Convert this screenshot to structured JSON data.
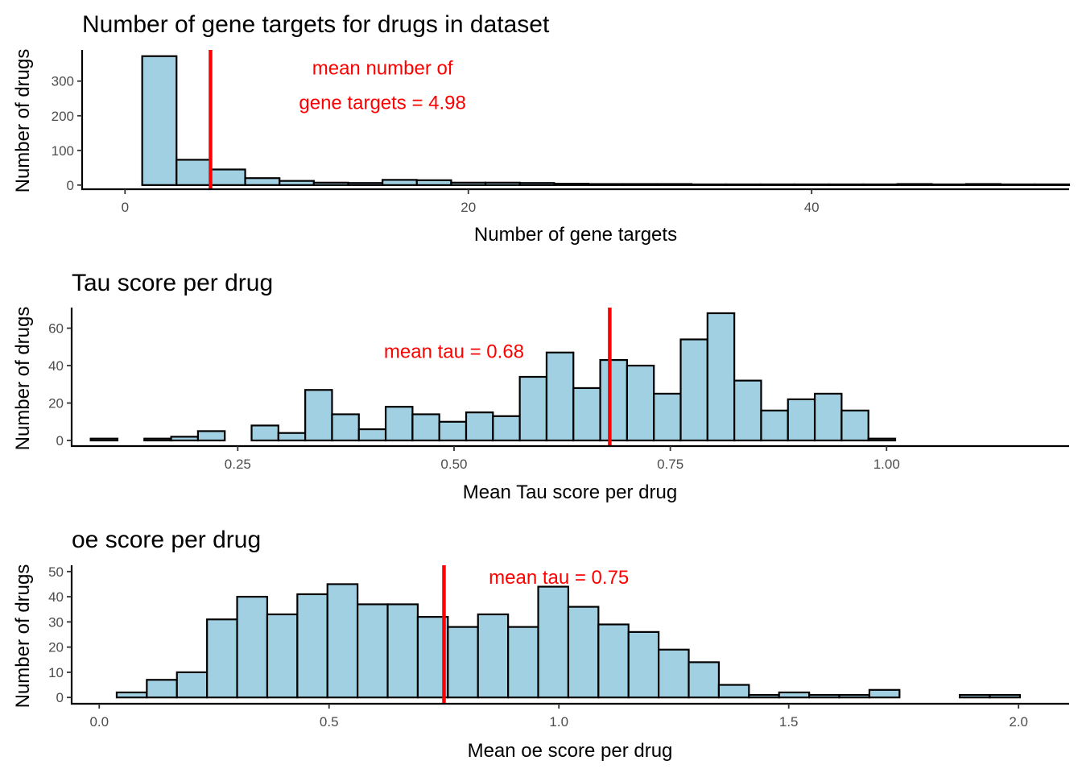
{
  "style": {
    "bar_fill": "#a1d0e2",
    "bar_stroke": "#000000",
    "mean_line_color": "#ff0000",
    "annotation_color": "#ff0000"
  },
  "chart_data": [
    {
      "type": "bar",
      "title": "Number of gene targets for drugs in dataset",
      "xlabel": "Number of gene targets",
      "ylabel": "Number of drugs",
      "xlim": [
        -2.5,
        55.0
      ],
      "ylim": [
        -12,
        390
      ],
      "xticks": [
        0,
        20,
        40
      ],
      "yticks": [
        0,
        100,
        200,
        300
      ],
      "bins": {
        "start": 1,
        "width": 2,
        "counts": [
          372,
          73,
          45,
          20,
          12,
          7,
          6,
          15,
          14,
          7,
          7,
          6,
          4,
          3,
          3,
          3,
          2,
          2,
          2,
          2,
          2,
          2,
          3,
          2,
          3,
          2,
          2
        ]
      },
      "mean_line": 4.98,
      "annotation": {
        "lines": [
          "mean number of",
          "gene targets = 4.98"
        ],
        "x": 15,
        "y": [
          340,
          240
        ]
      }
    },
    {
      "type": "bar",
      "title": "Tau score per drug",
      "xlabel": "Mean Tau score per drug",
      "ylabel": "Number of drugs",
      "xlim": [
        0.058,
        1.211
      ],
      "ylim": [
        -3,
        71
      ],
      "xticks": [
        0.25,
        0.5,
        0.75,
        1.0
      ],
      "xtick_labels": [
        "0.25",
        "0.50",
        "0.75",
        "1.00"
      ],
      "yticks": [
        0,
        20,
        40,
        60
      ],
      "bins": {
        "start": 0.08,
        "width": 0.031,
        "counts": [
          1,
          0,
          1,
          2,
          5,
          0,
          8,
          4,
          27,
          14,
          6,
          18,
          14,
          10,
          15,
          13,
          34,
          47,
          28,
          43,
          40,
          25,
          54,
          68,
          32,
          16,
          22,
          25,
          16,
          1
        ]
      },
      "mean_line": 0.68,
      "annotation": {
        "lines": [
          "mean tau = 0.68"
        ],
        "x": 0.5,
        "y": [
          48
        ]
      }
    },
    {
      "type": "bar",
      "title": "oe score per drug",
      "xlabel": "Mean oe score per drug",
      "ylabel": "Number of drugs",
      "xlim": [
        -0.06,
        2.11
      ],
      "ylim": [
        -2.5,
        52.5
      ],
      "xticks": [
        0.0,
        0.5,
        1.0,
        1.5,
        2.0
      ],
      "xtick_labels": [
        "0.0",
        "0.5",
        "1.0",
        "1.5",
        "2.0"
      ],
      "yticks": [
        0,
        10,
        20,
        30,
        40,
        50
      ],
      "bins": {
        "start": 0.038,
        "width": 0.0655,
        "counts": [
          2,
          7,
          10,
          31,
          40,
          33,
          41,
          45,
          37,
          37,
          32,
          28,
          33,
          28,
          44,
          36,
          29,
          26,
          19,
          14,
          5,
          1,
          2,
          1,
          1,
          3,
          0,
          0,
          1,
          1
        ]
      },
      "mean_line": 0.75,
      "annotation": {
        "lines": [
          "mean tau = 0.75"
        ],
        "x": 1.0,
        "y": [
          48
        ]
      }
    }
  ]
}
